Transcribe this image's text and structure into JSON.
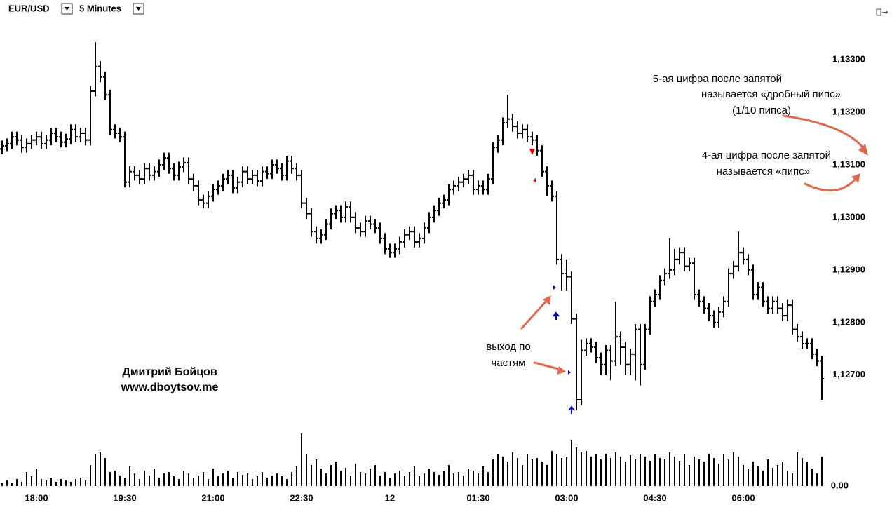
{
  "chart_data": {
    "type": "ohlc",
    "title": "EUR/USD",
    "timeframe": "5 Minutes",
    "color": "#000000",
    "categories": [
      null,
      null,
      null,
      null,
      null,
      null,
      null,
      "18:00",
      null,
      null,
      null,
      null,
      null,
      null,
      null,
      null,
      null,
      null,
      null,
      null,
      null,
      null,
      null,
      null,
      null,
      "19:30",
      null,
      null,
      null,
      null,
      null,
      null,
      null,
      null,
      null,
      null,
      null,
      null,
      null,
      null,
      null,
      null,
      null,
      "21:00",
      null,
      null,
      null,
      null,
      null,
      null,
      null,
      null,
      null,
      null,
      null,
      null,
      null,
      null,
      null,
      null,
      null,
      "22:30",
      null,
      null,
      null,
      null,
      null,
      null,
      null,
      null,
      null,
      null,
      null,
      null,
      null,
      null,
      null,
      null,
      null,
      "12",
      null,
      null,
      null,
      null,
      null,
      null,
      null,
      null,
      null,
      null,
      null,
      null,
      null,
      null,
      null,
      null,
      null,
      "01:30",
      null,
      null,
      null,
      null,
      null,
      null,
      null,
      null,
      null,
      null,
      null,
      null,
      null,
      null,
      null,
      null,
      null,
      "03:00",
      null,
      null,
      null,
      null,
      null,
      null,
      null,
      null,
      null,
      null,
      null,
      null,
      null,
      null,
      null,
      null,
      null,
      "04:30",
      null,
      null,
      null,
      null,
      null,
      null,
      null,
      null,
      null,
      null,
      null,
      null,
      null,
      null,
      null,
      null,
      null,
      "06:00",
      null,
      null,
      null,
      null,
      null,
      null,
      null,
      null,
      null,
      null,
      null,
      null,
      null,
      null,
      null,
      null
    ],
    "open": [
      1.1313,
      1.13136,
      1.1314,
      1.13153,
      1.13147,
      1.13133,
      1.1314,
      1.13147,
      1.13153,
      1.1314,
      1.13147,
      1.1316,
      1.13153,
      1.13143,
      1.13149,
      1.13167,
      1.13153,
      1.1316,
      1.13147,
      1.1324,
      1.13287,
      1.13267,
      1.13233,
      1.13167,
      1.1316,
      1.13153,
      1.13067,
      1.13087,
      1.1308,
      1.13073,
      1.13093,
      1.1308,
      1.13087,
      1.131,
      1.13113,
      1.13093,
      1.1308,
      1.13096,
      1.13104,
      1.13073,
      1.1306,
      1.13033,
      1.13027,
      1.1304,
      1.13053,
      1.1306,
      1.13073,
      1.1308,
      1.13056,
      1.13067,
      1.13087,
      1.13073,
      1.1308,
      1.13069,
      1.13087,
      1.13083,
      1.131,
      1.13093,
      1.1308,
      1.13107,
      1.13093,
      1.1308,
      1.13027,
      1.13007,
      1.12973,
      1.1296,
      1.12967,
      1.12987,
      1.13007,
      1.13013,
      1.13,
      1.1302,
      1.13,
      1.1298,
      1.12973,
      1.12993,
      1.12987,
      1.1298,
      1.1296,
      1.1294,
      1.12933,
      1.1294,
      1.12953,
      1.12967,
      1.12973,
      1.12953,
      1.1296,
      1.1298,
      1.13,
      1.13013,
      1.13027,
      1.13033,
      1.13053,
      1.1306,
      1.13067,
      1.13073,
      1.1308,
      1.13053,
      1.1306,
      1.13053,
      1.13073,
      1.13133,
      1.13147,
      1.1318,
      1.13187,
      1.13173,
      1.1316,
      1.13167,
      1.13153,
      1.13147,
      1.13127,
      1.13087,
      1.1306,
      1.1304,
      1.1292,
      1.12893,
      1.12887,
      1.12807,
      1.12653,
      1.12747,
      1.1276,
      1.12753,
      1.12733,
      1.1272,
      1.12747,
      1.12727,
      1.12773,
      1.12753,
      1.1272,
      1.1274,
      1.12787,
      1.1272,
      1.12787,
      1.1284,
      1.12853,
      1.1288,
      1.12893,
      1.129,
      1.1292,
      1.12933,
      1.12907,
      1.12913,
      1.12853,
      1.1284,
      1.12827,
      1.12813,
      1.128,
      1.1282,
      1.1284,
      1.12893,
      1.12907,
      1.12933,
      1.1292,
      1.129,
      1.12853,
      1.12867,
      1.1284,
      1.12827,
      1.1284,
      1.12827,
      1.12813,
      1.12833,
      1.12787,
      1.12773,
      1.1276,
      1.1276,
      1.1274,
      1.12727
    ],
    "high": [
      1.13146,
      1.1315,
      1.13163,
      1.13163,
      1.13157,
      1.1315,
      1.13157,
      1.13163,
      1.13163,
      1.13157,
      1.1317,
      1.1317,
      1.13163,
      1.13159,
      1.13177,
      1.13177,
      1.1317,
      1.1317,
      1.1325,
      1.13333,
      1.13297,
      1.13277,
      1.13243,
      1.13177,
      1.1317,
      1.13163,
      1.13097,
      1.13097,
      1.1309,
      1.13103,
      1.13103,
      1.13097,
      1.1311,
      1.13123,
      1.13123,
      1.13103,
      1.13106,
      1.13114,
      1.13114,
      1.13083,
      1.1307,
      1.13043,
      1.1305,
      1.13063,
      1.1307,
      1.13083,
      1.1309,
      1.1309,
      1.13077,
      1.13097,
      1.13097,
      1.1309,
      1.1309,
      1.13097,
      1.13097,
      1.1311,
      1.1311,
      1.13103,
      1.13117,
      1.13117,
      1.13103,
      1.1309,
      1.13037,
      1.13017,
      1.12983,
      1.12977,
      1.12997,
      1.13017,
      1.13023,
      1.13023,
      1.1303,
      1.1303,
      1.1301,
      1.1299,
      1.13003,
      1.13003,
      1.12997,
      1.1299,
      1.1297,
      1.1295,
      1.1295,
      1.12963,
      1.12977,
      1.12983,
      1.12983,
      1.1297,
      1.1299,
      1.1301,
      1.13023,
      1.13037,
      1.13043,
      1.13063,
      1.1307,
      1.13077,
      1.13083,
      1.1309,
      1.1309,
      1.1307,
      1.1307,
      1.13083,
      1.13143,
      1.13157,
      1.1319,
      1.13233,
      1.13197,
      1.13183,
      1.13177,
      1.13177,
      1.13163,
      1.13157,
      1.13137,
      1.13097,
      1.1307,
      1.1305,
      1.1293,
      1.1292,
      1.12897,
      1.12817,
      1.12767,
      1.1277,
      1.1277,
      1.12763,
      1.12743,
      1.12757,
      1.12757,
      1.1284,
      1.12783,
      1.12763,
      1.1275,
      1.12797,
      1.12797,
      1.12797,
      1.1285,
      1.12863,
      1.1289,
      1.12903,
      1.1296,
      1.1294,
      1.12943,
      1.12943,
      1.12923,
      1.12923,
      1.12863,
      1.1285,
      1.12837,
      1.12823,
      1.1283,
      1.1285,
      1.12903,
      1.12917,
      1.12973,
      1.12943,
      1.1293,
      1.1291,
      1.12877,
      1.12877,
      1.1285,
      1.1285,
      1.1285,
      1.12837,
      1.12843,
      1.12843,
      1.12797,
      1.12783,
      1.1277,
      1.1277,
      1.1275,
      1.12737
    ],
    "low": [
      1.1312,
      1.13126,
      1.1313,
      1.13137,
      1.13123,
      1.13123,
      1.1313,
      1.13137,
      1.1313,
      1.1313,
      1.13137,
      1.13143,
      1.13133,
      1.13133,
      1.13139,
      1.13143,
      1.13143,
      1.13137,
      1.13137,
      1.1323,
      1.13257,
      1.13223,
      1.13157,
      1.1315,
      1.13143,
      1.13057,
      1.13057,
      1.1307,
      1.13063,
      1.13063,
      1.1307,
      1.1307,
      1.13077,
      1.1309,
      1.13083,
      1.1307,
      1.1307,
      1.13086,
      1.13063,
      1.1305,
      1.13023,
      1.13017,
      1.13017,
      1.1303,
      1.13043,
      1.1305,
      1.13063,
      1.13046,
      1.13046,
      1.13057,
      1.13063,
      1.13063,
      1.13059,
      1.13059,
      1.13073,
      1.13073,
      1.13083,
      1.1307,
      1.1307,
      1.13083,
      1.1307,
      1.13017,
      1.12997,
      1.12963,
      1.1295,
      1.1295,
      1.12957,
      1.12977,
      1.12997,
      1.1299,
      1.1299,
      1.1299,
      1.1297,
      1.12963,
      1.12963,
      1.12977,
      1.1297,
      1.1295,
      1.1293,
      1.12923,
      1.12923,
      1.1293,
      1.12943,
      1.12957,
      1.12943,
      1.12943,
      1.1295,
      1.1297,
      1.1299,
      1.13003,
      1.13017,
      1.13023,
      1.13043,
      1.1305,
      1.13057,
      1.13063,
      1.13043,
      1.13043,
      1.13043,
      1.13043,
      1.13063,
      1.13123,
      1.13137,
      1.1317,
      1.13163,
      1.1315,
      1.1315,
      1.13143,
      1.13137,
      1.13117,
      1.13077,
      1.1304,
      1.1303,
      1.1291,
      1.1286,
      1.1286,
      1.12797,
      1.12633,
      1.12643,
      1.12737,
      1.12743,
      1.12723,
      1.127,
      1.127,
      1.1269,
      1.12717,
      1.1272,
      1.127,
      1.127,
      1.1269,
      1.1268,
      1.1271,
      1.12777,
      1.1283,
      1.12843,
      1.1287,
      1.12883,
      1.1289,
      1.1291,
      1.12897,
      1.12897,
      1.12843,
      1.1283,
      1.12817,
      1.12803,
      1.1279,
      1.1279,
      1.1281,
      1.1283,
      1.12883,
      1.12897,
      1.1291,
      1.1289,
      1.12843,
      1.12843,
      1.1283,
      1.12817,
      1.12817,
      1.12817,
      1.12803,
      1.12803,
      1.12777,
      1.12763,
      1.1275,
      1.1275,
      1.1273,
      1.12717,
      1.12653
    ],
    "close": [
      1.13136,
      1.1314,
      1.13153,
      1.13147,
      1.13133,
      1.1314,
      1.13147,
      1.13153,
      1.1314,
      1.13147,
      1.1316,
      1.13153,
      1.13143,
      1.13149,
      1.13167,
      1.13153,
      1.1316,
      1.13147,
      1.1324,
      1.13287,
      1.13267,
      1.13233,
      1.13167,
      1.1316,
      1.13153,
      1.13067,
      1.13087,
      1.1308,
      1.13073,
      1.13093,
      1.1308,
      1.13087,
      1.131,
      1.13113,
      1.13093,
      1.1308,
      1.13096,
      1.13104,
      1.13073,
      1.1306,
      1.13033,
      1.13027,
      1.1304,
      1.13053,
      1.1306,
      1.13073,
      1.1308,
      1.13056,
      1.13067,
      1.13087,
      1.13073,
      1.1308,
      1.13069,
      1.13087,
      1.13083,
      1.131,
      1.13093,
      1.1308,
      1.13107,
      1.13093,
      1.1308,
      1.13027,
      1.13007,
      1.12973,
      1.1296,
      1.12967,
      1.12987,
      1.13007,
      1.13013,
      1.13,
      1.1302,
      1.13,
      1.1298,
      1.12973,
      1.12993,
      1.12987,
      1.1298,
      1.1296,
      1.1294,
      1.12933,
      1.1294,
      1.12953,
      1.12967,
      1.12973,
      1.12953,
      1.1296,
      1.1298,
      1.13,
      1.13013,
      1.13027,
      1.13033,
      1.13053,
      1.1306,
      1.13067,
      1.13073,
      1.1308,
      1.13053,
      1.1306,
      1.13053,
      1.13073,
      1.13133,
      1.13147,
      1.1318,
      1.13187,
      1.13173,
      1.1316,
      1.13167,
      1.13153,
      1.13147,
      1.13127,
      1.13087,
      1.1306,
      1.1304,
      1.1292,
      1.12893,
      1.12887,
      1.12807,
      1.12653,
      1.12747,
      1.1276,
      1.12753,
      1.12733,
      1.1272,
      1.12747,
      1.12727,
      1.12773,
      1.12753,
      1.1272,
      1.1274,
      1.12787,
      1.1272,
      1.12787,
      1.1284,
      1.12853,
      1.1288,
      1.12893,
      1.129,
      1.1292,
      1.12933,
      1.12907,
      1.12913,
      1.12853,
      1.1284,
      1.12827,
      1.12813,
      1.128,
      1.1282,
      1.1284,
      1.12893,
      1.12907,
      1.12933,
      1.1292,
      1.129,
      1.12853,
      1.12867,
      1.1284,
      1.12827,
      1.1284,
      1.12827,
      1.12813,
      1.12833,
      1.12787,
      1.12773,
      1.1276,
      1.1276,
      1.1274,
      1.12727,
      1.12693
    ],
    "ylim": [
      1.12613,
      1.1336
    ],
    "yticks": [
      {
        "value": 1.127,
        "label": "1,12700"
      },
      {
        "value": 1.128,
        "label": "1,12800"
      },
      {
        "value": 1.129,
        "label": "1,12900"
      },
      {
        "value": 1.13,
        "label": "1,13000"
      },
      {
        "value": 1.131,
        "label": "1,13100"
      },
      {
        "value": 1.132,
        "label": "1,13200"
      },
      {
        "value": 1.133,
        "label": "1,13300"
      }
    ],
    "volume": {
      "values": [
        5,
        8,
        4,
        10,
        6,
        20,
        14,
        25,
        10,
        8,
        12,
        6,
        10,
        8,
        6,
        10,
        12,
        8,
        30,
        45,
        48,
        40,
        20,
        22,
        15,
        12,
        28,
        18,
        10,
        22,
        15,
        25,
        12,
        18,
        20,
        14,
        10,
        22,
        18,
        12,
        15,
        20,
        10,
        25,
        14,
        18,
        22,
        12,
        20,
        16,
        18,
        10,
        14,
        20,
        12,
        15,
        18,
        14,
        10,
        20,
        28,
        75,
        45,
        30,
        38,
        25,
        18,
        30,
        35,
        22,
        26,
        15,
        32,
        20,
        18,
        25,
        30,
        15,
        20,
        12,
        18,
        22,
        15,
        20,
        28,
        14,
        18,
        25,
        20,
        16,
        22,
        30,
        18,
        20,
        15,
        25,
        22,
        18,
        28,
        20,
        38,
        45,
        42,
        35,
        48,
        40,
        30,
        45,
        38,
        40,
        35,
        30,
        50,
        45,
        40,
        42,
        65,
        55,
        48,
        50,
        42,
        45,
        38,
        46,
        40,
        48,
        42,
        35,
        44,
        38,
        45,
        42,
        36,
        45,
        40,
        38,
        48,
        42,
        36,
        45,
        30,
        42,
        38,
        35,
        46,
        40,
        32,
        45,
        38,
        48,
        42,
        30,
        25,
        35,
        28,
        22,
        38,
        26,
        30,
        34,
        22,
        18,
        48,
        40,
        35,
        25,
        18,
        42
      ],
      "ylim": [
        0,
        100
      ],
      "yticks": [
        {
          "value": 0,
          "label": "0.00"
        }
      ]
    },
    "annotations": [
      [
        "5-ая цифра после запятой",
        "называется «дробный пипс»",
        "(1/10 пипса)"
      ],
      [
        "4-ая цифра после запятой",
        "называется «пипс»"
      ],
      [
        "выход по",
        "частям"
      ]
    ],
    "author": [
      "Дмитрий Бойцов",
      "www.dboytsov.me"
    ]
  }
}
